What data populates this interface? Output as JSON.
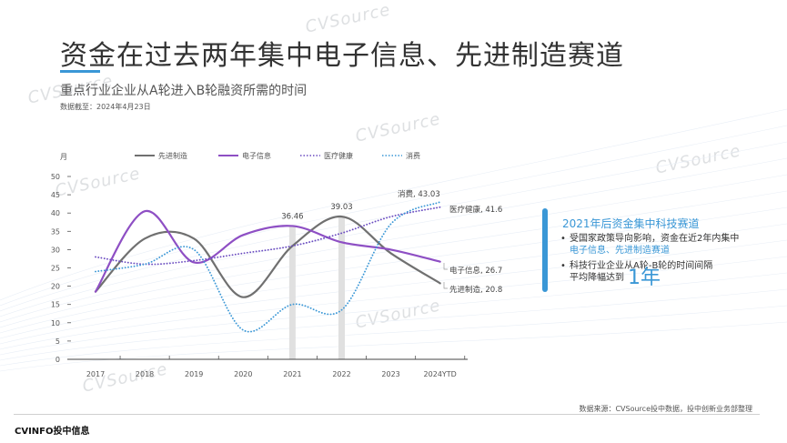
{
  "header": {
    "title": "资金在过去两年集中电子信息、先进制造赛道",
    "subtitle": "重点行业企业从A轮进入B轮融资所需的时间",
    "date_note": "数据截至：2024年4月23日"
  },
  "watermark": {
    "brand": "CVSource",
    "cn": "投中数据"
  },
  "legend": {
    "y_unit": "月",
    "items": [
      {
        "name": "先进制造",
        "style": "solid",
        "color": "#707070"
      },
      {
        "name": "电子信息",
        "style": "solid",
        "color": "#8e4fc4"
      },
      {
        "name": "医疗健康",
        "style": "dotted",
        "color": "#6a4bc0"
      },
      {
        "name": "消费",
        "style": "dotted",
        "color": "#3a97d6"
      }
    ]
  },
  "chart_data": {
    "type": "line",
    "title": "重点行业企业从A轮进入B轮融资所需的时间",
    "xlabel": "",
    "ylabel": "月",
    "categories": [
      "2017",
      "2018",
      "2019",
      "2020",
      "2021",
      "2022",
      "2023",
      "2024YTD"
    ],
    "ylim": [
      0,
      50
    ],
    "yticks": [
      0,
      5,
      10,
      15,
      20,
      25,
      30,
      35,
      40,
      45,
      50
    ],
    "grid": false,
    "legend_position": "top",
    "series": [
      {
        "name": "先进制造",
        "values": [
          18.5,
          33,
          33,
          17,
          31,
          39.03,
          29,
          20.8
        ]
      },
      {
        "name": "电子信息",
        "values": [
          18.5,
          40.5,
          26.5,
          34,
          36.46,
          32,
          30,
          26.7
        ]
      },
      {
        "name": "医疗健康",
        "values": [
          28,
          26,
          27,
          29,
          31,
          34.5,
          39,
          41.6
        ]
      },
      {
        "name": "消费",
        "values": [
          24,
          26,
          30,
          8,
          15,
          13.5,
          37,
          43.03
        ]
      }
    ],
    "annotations": [
      {
        "x": "2021",
        "label": "36.46",
        "series": "电子信息"
      },
      {
        "x": "2022",
        "label": "39.03",
        "series": "先进制造"
      },
      {
        "x": "2024YTD",
        "label": "消费, 43.03"
      },
      {
        "x": "2024YTD",
        "label": "医疗健康, 41.6"
      },
      {
        "x": "2024YTD",
        "label": "电子信息, 26.7"
      },
      {
        "x": "2024YTD",
        "label": "先进制造, 20.8"
      }
    ]
  },
  "callout": {
    "title": "2021年后资金集中科技赛道",
    "bullet1_text": "受国家政策导向影响，资金在近2年内集中",
    "bullet1_highlight": "电子信息、先进制造赛道",
    "bullet2_text": "科技行业企业从A轮-B轮的时间间隔",
    "bullet2_text2": "平均降幅达到",
    "bullet2_big": "1年"
  },
  "footer": {
    "source": "数据来源：CVSource投中数据，投中创新业务部整理",
    "logo": "CVINFO投中信息"
  }
}
